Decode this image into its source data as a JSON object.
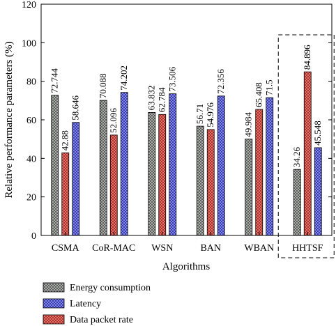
{
  "chart_data": {
    "type": "bar",
    "xlabel": "Algorithms",
    "ylabel": "Relative performance parameters (%)",
    "ylim": [
      0,
      120
    ],
    "yticks": [
      0,
      20,
      40,
      60,
      80,
      100,
      120
    ],
    "categories": [
      "CSMA",
      "CoR-MAC",
      "WSN",
      "BAN",
      "WBAN",
      "HHTSF"
    ],
    "series": [
      {
        "name": "Energy consumption",
        "color": "#a7aba7",
        "values": [
          72.744,
          70.088,
          63.832,
          56.71,
          49.984,
          34.26
        ],
        "labels": [
          "72.744",
          "70.088",
          "63.832",
          "56.71",
          "49.984",
          "34.26"
        ]
      },
      {
        "name": "Data packet rate",
        "color": "#f0645c",
        "values": [
          42.88,
          52.096,
          62.784,
          54.976,
          65.408,
          84.896
        ],
        "labels": [
          "42.88",
          "52.096",
          "62.784",
          "54.976",
          "65.408",
          "84.896"
        ]
      },
      {
        "name": "Latency",
        "color": "#7b80f5",
        "values": [
          58.646,
          74.202,
          73.506,
          72.356,
          71.5,
          45.548
        ],
        "labels": [
          "58.646",
          "74.202",
          "73.506",
          "72.356",
          "71.5",
          "45.548"
        ]
      }
    ],
    "legend_order": [
      "Energy consumption",
      "Latency",
      "Data packet rate"
    ],
    "highlight_category": "HHTSF",
    "legend_position": "bottom-left"
  }
}
